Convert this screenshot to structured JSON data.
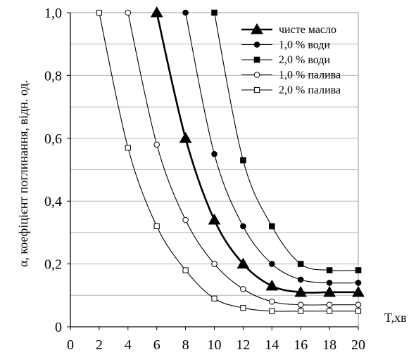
{
  "chart_data": {
    "type": "line",
    "title": "",
    "xlabel": "T,хв",
    "ylabel": "α, коефіцієнт поглинання, відн. од.",
    "xlim": [
      0,
      20
    ],
    "ylim": [
      0,
      1.0
    ],
    "x_ticks": [
      "0",
      "2",
      "4",
      "6",
      "8",
      "10",
      "12",
      "14",
      "16",
      "18",
      "20"
    ],
    "y_ticks": [
      "0",
      "0,2",
      "0,4",
      "0,6",
      "0,8",
      "1,0"
    ],
    "grid": "horizontal",
    "legend_position": "top-right",
    "series": [
      {
        "name": "чисте масло",
        "marker": "filled-triangle",
        "bold": true,
        "x": [
          6,
          8,
          10,
          12,
          14,
          16,
          18,
          20
        ],
        "y": [
          1.0,
          0.6,
          0.34,
          0.2,
          0.13,
          0.11,
          0.11,
          0.11
        ]
      },
      {
        "name": "1,0 % води",
        "marker": "filled-circle",
        "bold": false,
        "x": [
          8,
          10,
          12,
          14,
          16,
          18,
          20
        ],
        "y": [
          1.0,
          0.55,
          0.32,
          0.2,
          0.15,
          0.14,
          0.14
        ]
      },
      {
        "name": "2,0 % води",
        "marker": "filled-square",
        "bold": false,
        "x": [
          10,
          12,
          14,
          16,
          18,
          20
        ],
        "y": [
          1.0,
          0.53,
          0.32,
          0.2,
          0.18,
          0.18
        ]
      },
      {
        "name": "1,0 % палива",
        "marker": "open-circle",
        "bold": false,
        "x": [
          4,
          6,
          8,
          10,
          12,
          14,
          16,
          18,
          20
        ],
        "y": [
          1.0,
          0.58,
          0.34,
          0.2,
          0.12,
          0.08,
          0.07,
          0.07,
          0.07
        ]
      },
      {
        "name": "2,0 % палива",
        "marker": "open-square",
        "bold": false,
        "x": [
          2,
          4,
          6,
          8,
          10,
          12,
          14,
          16,
          18,
          20
        ],
        "y": [
          1.0,
          0.57,
          0.32,
          0.18,
          0.09,
          0.06,
          0.05,
          0.05,
          0.05,
          0.05
        ]
      }
    ]
  }
}
